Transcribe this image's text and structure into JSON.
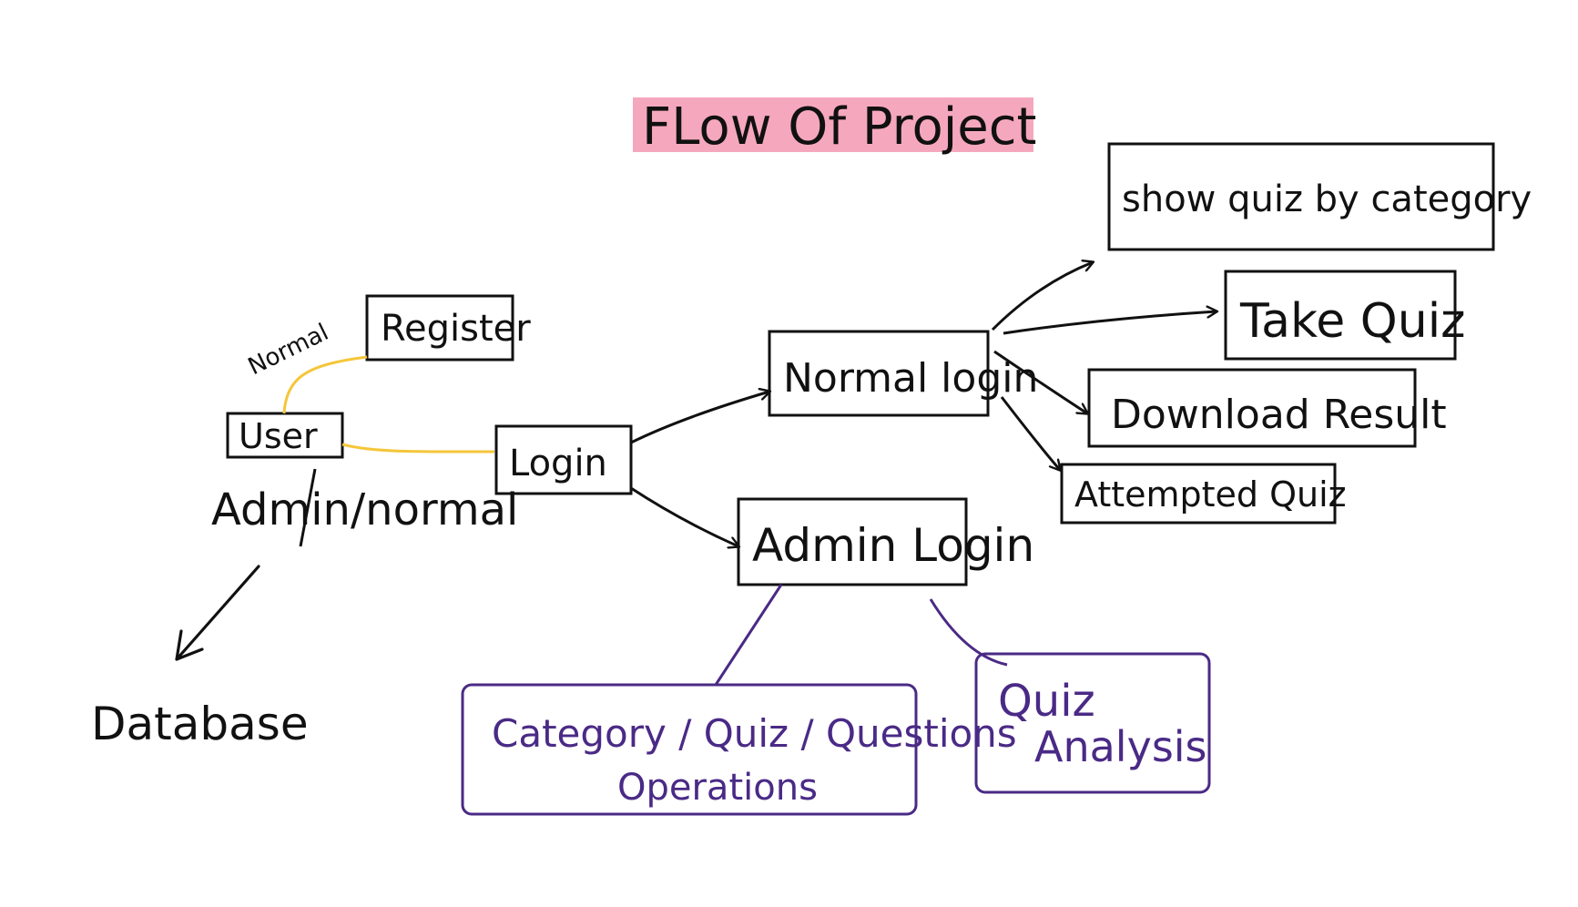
{
  "title": "FLow Of Project",
  "colors": {
    "ink": "#111111",
    "highlight": "#f4a3b9",
    "connector_yellow": "#f5c63a",
    "admin_purple": "#4a2a86"
  },
  "nodes": {
    "register": "Register",
    "normal_note": "Normal",
    "user": "User",
    "user_caption": "Admin/normal",
    "database": "Database",
    "login": "Login",
    "normal_login": "Normal login",
    "admin_login": "Admin Login",
    "show_quiz": "show quiz by category",
    "take_quiz": "Take Quiz",
    "download_result": "Download Result",
    "attempted_quiz": "Attempted Quiz",
    "crud_line1": "Category / Quiz / Questions",
    "crud_line2": "Operations",
    "quiz_analysis_line1": "Quiz",
    "quiz_analysis_line2": "Analysis"
  }
}
